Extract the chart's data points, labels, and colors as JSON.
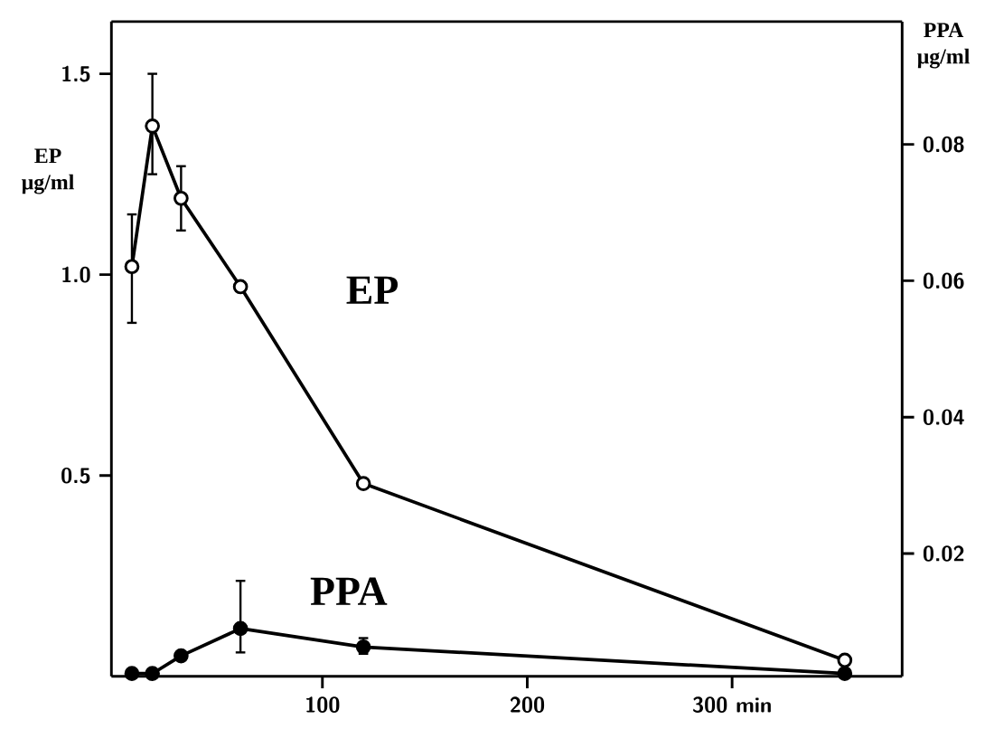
{
  "chart_data": {
    "type": "line",
    "ylabel": "EP μg/ml",
    "y2label": "PPA μg/ml",
    "xlim": [
      -3,
      383
    ],
    "xticks": [
      100,
      200,
      {
        "value": 300,
        "label": "300 min"
      }
    ],
    "ylim": [
      0,
      1.63
    ],
    "yticks": [
      {
        "value": 0.5,
        "label": "0.5"
      },
      {
        "value": 1,
        "label": "1.0"
      },
      {
        "value": 1.5,
        "label": "1.5"
      }
    ],
    "y2lim": [
      0.002,
      0.098
    ],
    "y2ticks": [
      0.02,
      0.04,
      0.06,
      0.08
    ],
    "marker": "circle",
    "grid": false,
    "legend": false,
    "series": [
      {
        "name": "EP",
        "color": "#000000",
        "axis": "y",
        "x": [
          7,
          17,
          31,
          60,
          120,
          355
        ],
        "values": [
          1.02,
          1.37,
          1.19,
          0.97,
          0.48,
          0.04
        ],
        "errors": [
          [
            0.88,
            1.15
          ],
          [
            1.25,
            1.5
          ],
          [
            1.11,
            1.27
          ],
          null,
          null,
          null
        ]
      },
      {
        "name": "PPA",
        "color": "#000000",
        "axis": "y2",
        "x": [
          7,
          17,
          31,
          60,
          120,
          355
        ],
        "values": [
          0.0024,
          0.0024,
          0.005,
          0.009,
          0.0063,
          0.0024
        ],
        "errors": [
          null,
          null,
          null,
          [
            0.0055,
            0.016
          ],
          [
            0.0053,
            0.0076
          ],
          null
        ]
      }
    ]
  }
}
